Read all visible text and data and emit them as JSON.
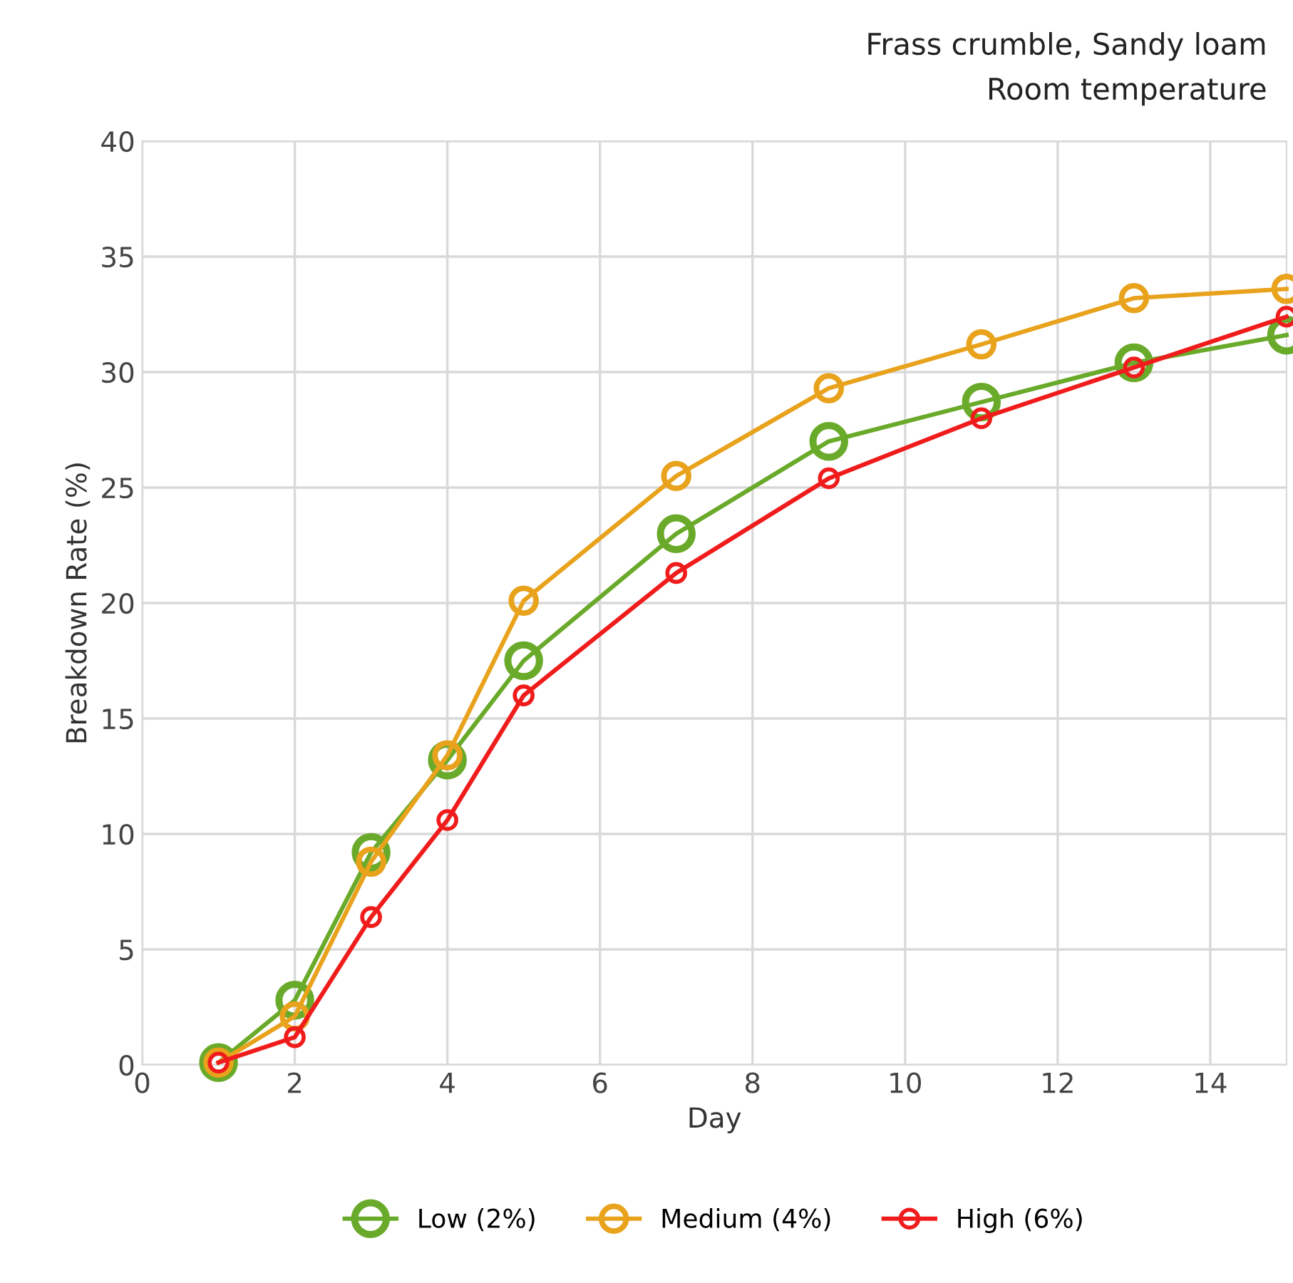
{
  "chart_data": {
    "type": "line",
    "title": "Frass crumble, Sandy loam",
    "subtitle": "Room temperature",
    "xlabel": "Day",
    "ylabel": "Breakdown Rate (%)",
    "x": [
      1,
      2,
      3,
      4,
      5,
      7,
      9,
      11,
      13,
      15
    ],
    "series": [
      {
        "name": "Low (2%)",
        "color": "#6aaa2a",
        "values": [
          0.1,
          2.8,
          9.2,
          13.2,
          17.5,
          23.0,
          27.0,
          28.7,
          30.4,
          31.6
        ]
      },
      {
        "name": "Medium (4%)",
        "color": "#e8a21c",
        "values": [
          0.1,
          2.1,
          8.8,
          13.4,
          20.1,
          25.5,
          29.3,
          31.2,
          33.2,
          33.6
        ]
      },
      {
        "name": "High (6%)",
        "color": "#f01c1c",
        "values": [
          0.1,
          1.2,
          6.4,
          10.6,
          16.0,
          21.3,
          25.4,
          28.0,
          30.2,
          32.4
        ]
      }
    ],
    "xlim": [
      0,
      15
    ],
    "xticks": [
      0,
      2,
      4,
      6,
      8,
      10,
      12,
      14
    ],
    "ylim": [
      0,
      40
    ],
    "yticks": [
      0,
      5,
      10,
      15,
      20,
      25,
      30,
      35,
      40
    ],
    "grid": true,
    "legend": "bottom",
    "marker": "circle",
    "line_style": "solid"
  }
}
